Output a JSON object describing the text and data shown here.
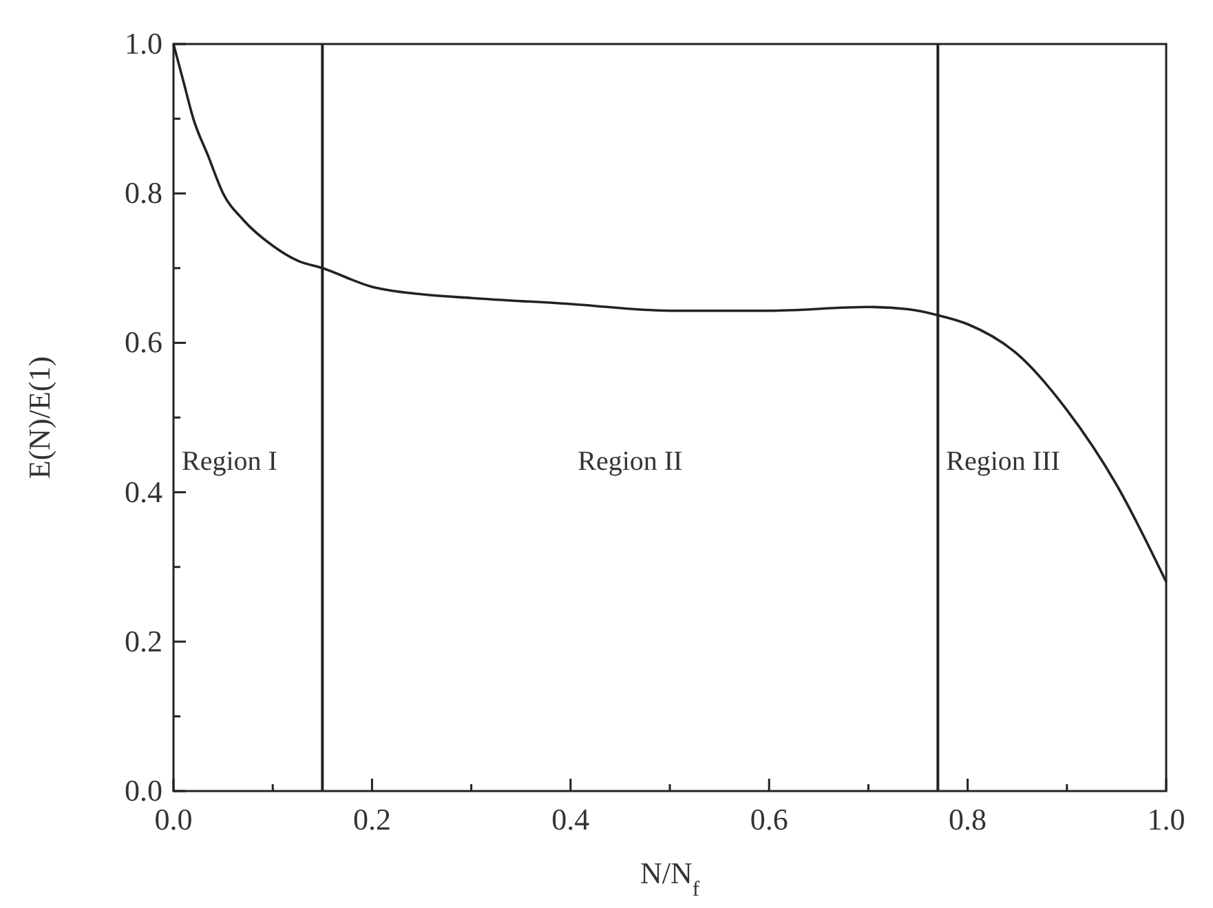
{
  "chart_data": {
    "type": "line",
    "xlabel": "N/N$_{f}$",
    "ylabel": "E(N)/E(1)",
    "x": [
      0,
      0.01,
      0.02,
      0.035,
      0.05,
      0.07,
      0.1,
      0.125,
      0.15,
      0.2,
      0.25,
      0.3,
      0.4,
      0.5,
      0.6,
      0.7,
      0.74,
      0.77,
      0.8,
      0.85,
      0.9,
      0.95,
      1.0
    ],
    "series": [
      {
        "color": "#222222",
        "values": [
          1.0,
          0.95,
          0.9,
          0.85,
          0.8,
          0.765,
          0.73,
          0.71,
          0.7,
          0.675,
          0.665,
          0.66,
          0.652,
          0.643,
          0.643,
          0.648,
          0.645,
          0.637,
          0.625,
          0.585,
          0.51,
          0.41,
          0.28
        ]
      }
    ],
    "xlim": [
      0,
      1
    ],
    "ylim": [
      0,
      1
    ],
    "xticks": [
      {
        "value": 0,
        "label": "0.0"
      },
      {
        "value": 0.1,
        "label": null
      },
      0.2,
      {
        "value": 0.3,
        "label": null
      },
      0.4,
      {
        "value": 0.5,
        "label": null
      },
      0.6,
      {
        "value": 0.7,
        "label": null
      },
      0.8,
      {
        "value": 0.9,
        "label": null
      },
      {
        "value": 1,
        "label": "1.0"
      }
    ],
    "yticks": [
      {
        "value": 0,
        "label": "0.0"
      },
      {
        "value": 0.1,
        "label": null
      },
      0.2,
      {
        "value": 0.3,
        "label": null
      },
      0.4,
      {
        "value": 0.5,
        "label": null
      },
      0.6,
      {
        "value": 0.7,
        "label": null
      },
      0.8,
      {
        "value": 0.9,
        "label": null
      },
      {
        "value": 1,
        "label": "1.0"
      }
    ],
    "ref_lines": [
      {
        "axis": "x",
        "value": 0.15,
        "color": "#222222"
      },
      {
        "axis": "x",
        "value": 0.77,
        "color": "#222222"
      }
    ],
    "annotations": [
      "Region I",
      "Region II",
      "Region III"
    ],
    "grid": false,
    "marker": "none",
    "line_style": "solid"
  }
}
